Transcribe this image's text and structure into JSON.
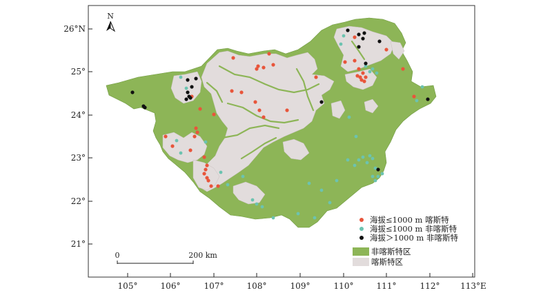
{
  "north_label": "N",
  "lat_labels": [
    "26°N",
    "25°",
    "24°",
    "23°",
    "22°",
    "21°"
  ],
  "lon_labels": [
    "105°",
    "106°",
    "107°",
    "108°",
    "109°",
    "110°",
    "111°",
    "112°",
    "113°E"
  ],
  "scale_bar": {
    "start": "0",
    "end": "200 km"
  },
  "legend": {
    "points": [
      {
        "label": "海拔≤1000 m 喀斯特",
        "color": "#e8553b"
      },
      {
        "label": "海拔≤1000 m 非喀斯特",
        "color": "#6cc3b0"
      },
      {
        "label": "海拔＞1000 m 非喀斯特",
        "color": "#111111"
      }
    ],
    "areas": [
      {
        "label": "非喀斯特区",
        "color": "#8db557"
      },
      {
        "label": "喀斯特区",
        "color": "#e2dcdc"
      }
    ]
  },
  "colors": {
    "non_karst": "#8db557",
    "karst": "#e2dcdc",
    "frame": "#333333"
  }
}
